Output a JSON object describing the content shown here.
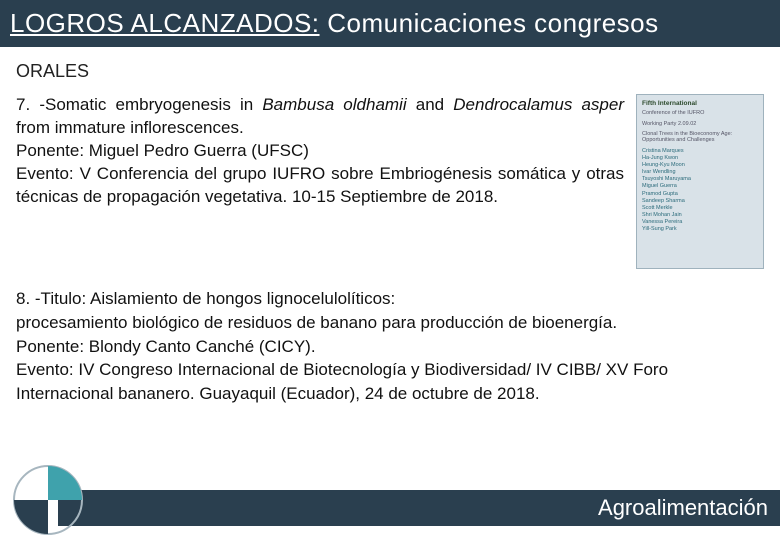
{
  "title": {
    "underlined_part": "LOGROS ALCANZADOS:",
    "rest": " Comunicaciones congresos"
  },
  "section_label": "ORALES",
  "entry7": {
    "prefix": "7. -Somatic embryogenesis in ",
    "italic1": "Bambusa oldhamii",
    "mid": " and ",
    "italic2": "Dendrocalamus asper",
    "after_italic": " from immature inflorescences.",
    "ponente_label": "Ponente: ",
    "ponente": "Miguel Pedro Guerra (UFSC)",
    "evento_label": "Evento: ",
    "evento": "V Conferencia del grupo IUFRO sobre Embriogénesis somática y otras técnicas de propagación vegetativa. 10-15 Septiembre de 2018."
  },
  "poster": {
    "head": "Fifth International",
    "sub1": "Conference of the IUFRO",
    "sub2": "Working Party 2.09.02",
    "tagline": "Clonal Trees in the Bioeconomy Age: Opportunities and Challenges",
    "names": "Cristina Marques\\nHa-Jung Kwon\\nHeung-Kyu Moon\\nIvar Wendling\\nTsuyoshi Maruyama\\nMiguel Guerra\\nPramod Gupta\\nSandeep Sharma\\nScott Merkle\\nShri Mohan Jain\\nVanessa Pereira\\nYill-Sung Park"
  },
  "entry8": {
    "line1": "8. -Titulo: Aislamiento de hongos lignocelulolíticos:",
    "line2": "procesamiento biológico de residuos de banano para producción de bioenergía.",
    "ponente_label": "Ponente: ",
    "ponente": "Blondy Canto Canché (CICY).",
    "evento_label": "Evento: ",
    "evento": "IV Congreso Internacional de Biotecnología y Biodiversidad/ IV CIBB/ XV Foro Internacional bananero. Guayaquil (Ecuador), 24 de octubre de 2018."
  },
  "footer_label": "Agroalimentación",
  "colors": {
    "header_bg": "#2a3f4f",
    "logo_teal": "#3fa2ac",
    "logo_dark": "#2a3f4f",
    "page_bg": "#ffffff"
  }
}
